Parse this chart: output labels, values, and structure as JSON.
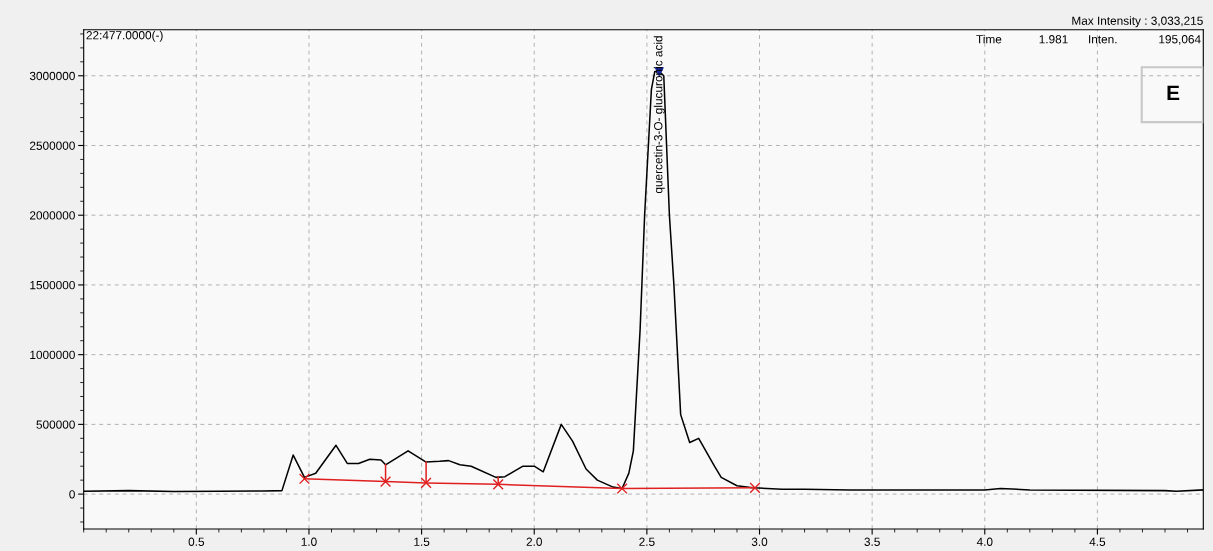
{
  "chart_data": {
    "type": "line",
    "xlim": [
      0.0,
      4.97
    ],
    "ylim": [
      -250000,
      3330000
    ],
    "xticks": [
      0.5,
      {
        "value": 1.0,
        "label": "1.0"
      },
      1.5,
      {
        "value": 2.0,
        "label": "2.0"
      },
      2.5,
      {
        "value": 3.0,
        "label": "3.0"
      },
      3.5,
      {
        "value": 4.0,
        "label": "4.0"
      },
      4.5
    ],
    "yticks": [
      0,
      500000,
      1000000,
      1500000,
      2000000,
      2500000,
      3000000
    ],
    "grid": true,
    "legend": false,
    "line_style": "solid",
    "series": [
      {
        "color": "#000000",
        "marker": "none",
        "x": [
          0.0,
          0.2,
          0.4,
          0.6,
          0.8,
          0.88,
          0.93,
          0.98,
          1.03,
          1.12,
          1.17,
          1.22,
          1.27,
          1.32,
          1.34,
          1.44,
          1.52,
          1.58,
          1.62,
          1.67,
          1.72,
          1.83,
          1.87,
          1.95,
          2.0,
          2.04,
          2.12,
          2.17,
          2.23,
          2.28,
          2.35,
          2.39,
          2.42,
          2.44,
          2.47,
          2.49,
          2.52,
          2.535,
          2.555,
          2.575,
          2.6,
          2.62,
          2.65,
          2.69,
          2.73,
          2.8,
          2.83,
          2.9,
          2.97,
          3.1,
          3.2,
          3.4,
          3.6,
          4.0,
          4.07,
          4.2,
          4.8,
          4.85,
          4.97
        ],
        "values": [
          20000,
          25000,
          18000,
          20000,
          22000,
          25000,
          280000,
          120000,
          150000,
          350000,
          220000,
          220000,
          250000,
          245000,
          210000,
          310000,
          230000,
          235000,
          240000,
          210000,
          200000,
          120000,
          125000,
          200000,
          200000,
          160000,
          500000,
          380000,
          180000,
          100000,
          50000,
          40000,
          150000,
          310000,
          1180000,
          2000000,
          2900000,
          3030000,
          3030000,
          3000000,
          2000000,
          1500000,
          570000,
          370000,
          400000,
          200000,
          120000,
          60000,
          45000,
          35000,
          35000,
          30000,
          30000,
          30000,
          40000,
          30000,
          25000,
          20000,
          30000
        ]
      },
      {
        "color": "#e02020",
        "marker": "cross",
        "x": [
          0.98,
          1.34,
          1.52,
          1.84,
          2.39,
          2.98
        ],
        "values": [
          110000,
          90000,
          80000,
          70000,
          40000,
          45000
        ]
      },
      {
        "color": "#e02020",
        "marker": "none",
        "x": [
          1.34,
          1.34
        ],
        "values": [
          90000,
          210000
        ]
      },
      {
        "color": "#e02020",
        "marker": "none",
        "x": [
          1.52,
          1.52
        ],
        "values": [
          80000,
          230000
        ]
      },
      {
        "color": "#e02020",
        "marker": "none",
        "x": [
          1.84,
          1.84
        ],
        "values": [
          70000,
          120000
        ]
      },
      {
        "type": "scatter",
        "color": "#1a2a9c",
        "marker": "triangle",
        "x": [
          2.555
        ],
        "values": [
          3030000
        ]
      }
    ],
    "annotations": [
      {
        "text": "quercetin-3-O- glucuronic acid",
        "x": 2.555,
        "y": 3030000
      },
      "22:477.0000(-)",
      "Max Intensity : 3,033,215",
      "Time",
      "1.981",
      "Inten.",
      "195,064",
      "E"
    ]
  }
}
